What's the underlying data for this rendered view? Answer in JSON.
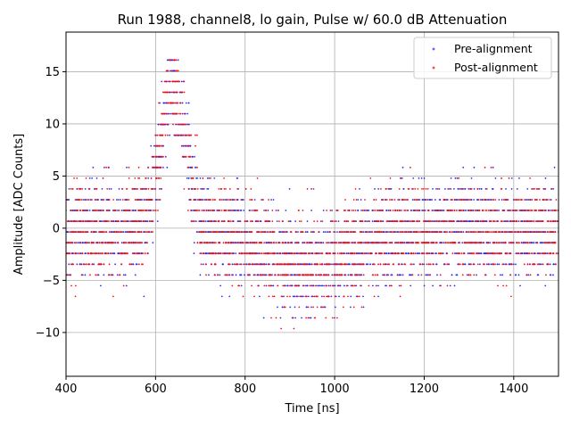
{
  "chart_data": {
    "type": "scatter",
    "title": "Run 1988, channel8, lo gain, Pulse w/ 60.0 dB Attenuation",
    "xlabel": "Time [ns]",
    "ylabel": "Amplitude [ADC Counts]",
    "xlim": [
      400,
      1500
    ],
    "ylim": [
      -14.2,
      18.8
    ],
    "xticks": [
      400,
      600,
      800,
      1000,
      1200,
      1400
    ],
    "yticks": [
      -10,
      -5,
      0,
      5,
      10,
      15
    ],
    "grid": true,
    "legend_position": "top-right",
    "quantization_step": 1.03,
    "quantized_levels": [
      -12.72,
      -11.69,
      -10.66,
      -9.63,
      -8.6,
      -7.57,
      -6.54,
      -5.51,
      -4.48,
      -3.45,
      -2.42,
      -1.39,
      -0.36,
      0.67,
      1.7,
      2.73,
      3.76,
      4.79,
      5.82,
      6.85,
      7.88,
      8.91,
      9.94,
      10.97,
      12.0,
      13.03,
      14.06,
      15.09,
      16.12
    ],
    "pulse": {
      "peak_time": 640,
      "peak_amplitude": 13.5,
      "width": 40,
      "undershoot_time": 940,
      "undershoot_amplitude": -3.5,
      "undershoot_width": 130
    },
    "series": [
      {
        "name": "Pre-alignment",
        "color": "#1f1fff",
        "marker": "+"
      },
      {
        "name": "Post-alignment",
        "color": "#ff0000",
        "marker": "+"
      }
    ]
  }
}
